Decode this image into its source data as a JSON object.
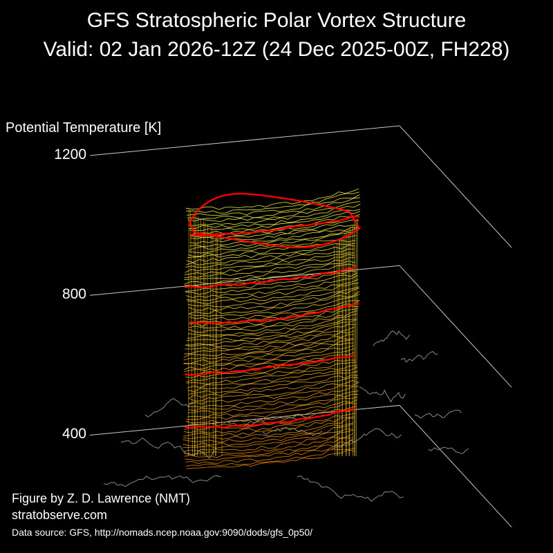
{
  "header": {
    "title_line1": "GFS Stratospheric Polar Vortex Structure",
    "title_line2": "Valid: 02 Jan 2026-12Z  (24 Dec 2025-00Z, FH228)"
  },
  "chart_data": {
    "type": "3d-isosurface",
    "zlabel": "Potential Temperature [K]",
    "z_ticks": [
      400,
      800,
      1200
    ],
    "zlim": [
      300,
      1200
    ],
    "highlighted_levels": [
      450,
      600,
      750,
      850,
      1000
    ],
    "colors": {
      "background": "#000000",
      "low": "#e07a00",
      "high": "#e8e840",
      "highlight": "#ff0000",
      "grid": "#c8c8c8",
      "coastline": "#8a8a8a"
    }
  },
  "footer": {
    "author": "Figure by Z. D. Lawrence (NMT)",
    "site": "stratobserve.com",
    "source": "Data source: GFS, http://nomads.ncep.noaa.gov:9090/dods/gfs_0p50/"
  }
}
